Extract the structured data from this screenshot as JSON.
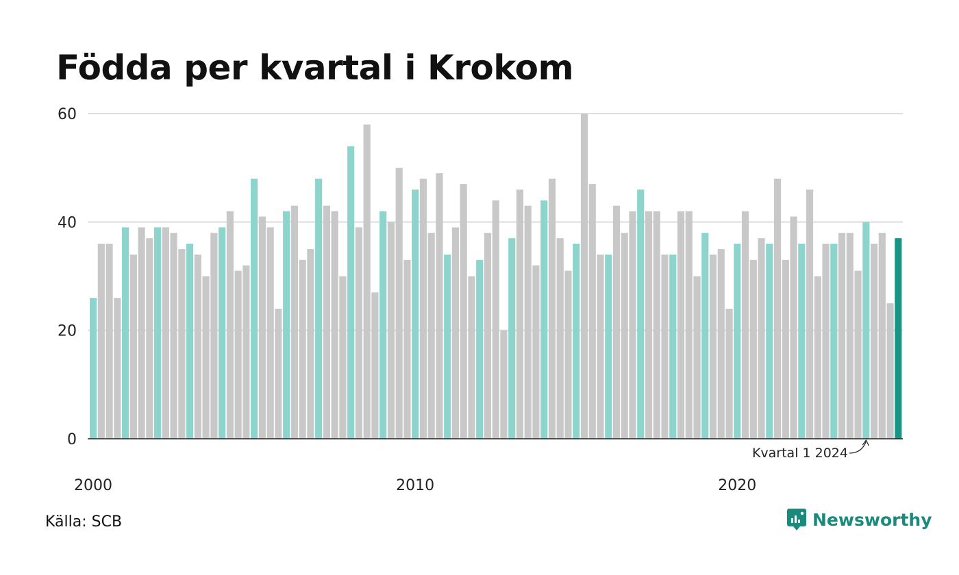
{
  "title": "Födda per kvartal i Krokom",
  "source": "Källa: SCB",
  "brand": {
    "name": "Newsworthy",
    "icon": "newsworthy-logo-icon",
    "color": "#1a8a7c"
  },
  "colors": {
    "highlight": "#8dd5cc",
    "other": "#c8c8c8",
    "latest": "#1a9484",
    "axis": "#222222",
    "grid": "#dddddd"
  },
  "chart_data": {
    "type": "bar",
    "title": "Födda per kvartal i Krokom",
    "xlabel": "",
    "ylabel": "",
    "ylim": [
      0,
      60
    ],
    "yticks": [
      0,
      20,
      40,
      60
    ],
    "xtick_labels": [
      "2000",
      "2010",
      "2020"
    ],
    "grid": true,
    "highlight_rule": "Kvartal 1 of each year shown in turquoise, other quarters grey; latest bar dark teal",
    "annotation": {
      "text": "Kvartal 1 2024",
      "target": "2024 Q1"
    },
    "categories": [
      "2000 Q1",
      "2000 Q2",
      "2000 Q3",
      "2000 Q4",
      "2001 Q1",
      "2001 Q2",
      "2001 Q3",
      "2001 Q4",
      "2002 Q1",
      "2002 Q2",
      "2002 Q3",
      "2002 Q4",
      "2003 Q1",
      "2003 Q2",
      "2003 Q3",
      "2003 Q4",
      "2004 Q1",
      "2004 Q2",
      "2004 Q3",
      "2004 Q4",
      "2005 Q1",
      "2005 Q2",
      "2005 Q3",
      "2005 Q4",
      "2006 Q1",
      "2006 Q2",
      "2006 Q3",
      "2006 Q4",
      "2007 Q1",
      "2007 Q2",
      "2007 Q3",
      "2007 Q4",
      "2008 Q1",
      "2008 Q2",
      "2008 Q3",
      "2008 Q4",
      "2009 Q1",
      "2009 Q2",
      "2009 Q3",
      "2009 Q4",
      "2010 Q1",
      "2010 Q2",
      "2010 Q3",
      "2010 Q4",
      "2011 Q1",
      "2011 Q2",
      "2011 Q3",
      "2011 Q4",
      "2012 Q1",
      "2012 Q2",
      "2012 Q3",
      "2012 Q4",
      "2013 Q1",
      "2013 Q2",
      "2013 Q3",
      "2013 Q4",
      "2014 Q1",
      "2014 Q2",
      "2014 Q3",
      "2014 Q4",
      "2015 Q1",
      "2015 Q2",
      "2015 Q3",
      "2015 Q4",
      "2016 Q1",
      "2016 Q2",
      "2016 Q3",
      "2016 Q4",
      "2017 Q1",
      "2017 Q2",
      "2017 Q3",
      "2017 Q4",
      "2018 Q1",
      "2018 Q2",
      "2018 Q3",
      "2018 Q4",
      "2019 Q1",
      "2019 Q2",
      "2019 Q3",
      "2019 Q4",
      "2020 Q1",
      "2020 Q2",
      "2020 Q3",
      "2020 Q4",
      "2021 Q1",
      "2021 Q2",
      "2021 Q3",
      "2021 Q4",
      "2022 Q1",
      "2022 Q2",
      "2022 Q3",
      "2022 Q4",
      "2023 Q1",
      "2023 Q2",
      "2023 Q3",
      "2023 Q4",
      "2024 Q1",
      "2024 Q2",
      "2024 Q3",
      "2024 Q4",
      "2025 Q1"
    ],
    "values": [
      26,
      36,
      36,
      26,
      39,
      34,
      39,
      37,
      39,
      39,
      38,
      35,
      36,
      34,
      30,
      38,
      39,
      42,
      31,
      32,
      48,
      41,
      39,
      24,
      42,
      43,
      33,
      35,
      48,
      43,
      42,
      30,
      54,
      39,
      58,
      27,
      42,
      40,
      50,
      33,
      46,
      48,
      38,
      49,
      34,
      39,
      47,
      30,
      33,
      38,
      44,
      20,
      37,
      46,
      43,
      32,
      44,
      48,
      37,
      31,
      36,
      60,
      47,
      34,
      34,
      43,
      38,
      42,
      46,
      42,
      42,
      34,
      34,
      42,
      42,
      30,
      38,
      34,
      35,
      24,
      36,
      42,
      33,
      37,
      36,
      48,
      33,
      41,
      36,
      46,
      30,
      36,
      36,
      38,
      38,
      31,
      40,
      36,
      38,
      25,
      37
    ]
  }
}
